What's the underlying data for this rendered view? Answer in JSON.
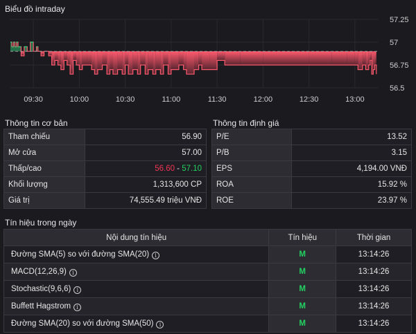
{
  "chart_section_title": "Biểu đồ intraday",
  "chart_data": {
    "type": "area",
    "baseline": 56.9,
    "ylim": [
      56.5,
      57.25
    ],
    "yticks": [
      "57.25",
      "57",
      "56.75",
      "56.5"
    ],
    "xticks": [
      "09:30",
      "10:00",
      "10:30",
      "11:00",
      "11:30",
      "12:00",
      "12:30",
      "13:00"
    ],
    "xrange": [
      "09:15",
      "13:15"
    ],
    "colors": {
      "above": "#2ebd6f",
      "below": "#ff5a6e",
      "below_fade": "#5a2630",
      "baseline": "#9a9a9a"
    },
    "series": [
      {
        "x": [
          "09:15",
          "09:16",
          "09:17",
          "09:18",
          "09:19",
          "09:20",
          "09:21",
          "09:22",
          "09:24",
          "09:26",
          "09:28",
          "09:30",
          "09:32",
          "09:33",
          "09:35",
          "09:37",
          "09:40",
          "09:42",
          "09:44",
          "09:46",
          "09:48",
          "09:50",
          "09:52",
          "09:54",
          "09:56",
          "09:58",
          "10:00",
          "10:02",
          "10:05",
          "10:08",
          "10:10",
          "10:12",
          "10:15",
          "10:18",
          "10:20",
          "10:22",
          "10:25",
          "10:28",
          "10:30",
          "10:32",
          "10:35",
          "10:38",
          "10:40",
          "10:43",
          "10:45",
          "10:48",
          "10:50",
          "10:53",
          "10:55",
          "10:58",
          "11:00",
          "11:03",
          "11:05",
          "11:08",
          "11:10",
          "11:15",
          "11:18",
          "11:20",
          "11:25",
          "11:30",
          "11:35",
          "11:45",
          "12:00",
          "12:15",
          "12:30",
          "12:45",
          "12:55",
          "13:00",
          "13:02",
          "13:05",
          "13:07",
          "13:09",
          "13:10",
          "13:11",
          "13:12",
          "13:13",
          "13:14"
        ],
        "y": [
          57.0,
          56.95,
          57.0,
          56.95,
          57.0,
          56.95,
          56.95,
          56.85,
          56.95,
          56.9,
          57.0,
          56.9,
          56.95,
          56.9,
          56.85,
          56.9,
          56.85,
          56.75,
          56.8,
          56.75,
          56.7,
          56.8,
          56.75,
          56.65,
          56.8,
          56.75,
          56.7,
          56.75,
          56.75,
          56.7,
          56.65,
          56.7,
          56.75,
          56.65,
          56.7,
          56.65,
          56.7,
          56.65,
          56.75,
          56.65,
          56.7,
          56.65,
          56.75,
          56.65,
          56.7,
          56.65,
          56.7,
          56.65,
          56.75,
          56.65,
          56.7,
          56.7,
          56.75,
          56.7,
          56.65,
          56.7,
          56.75,
          56.7,
          56.7,
          56.8,
          56.75,
          56.75,
          56.75,
          56.75,
          56.75,
          56.75,
          56.75,
          56.75,
          56.7,
          56.75,
          56.7,
          56.75,
          56.8,
          56.65,
          56.7,
          56.75,
          56.65
        ]
      }
    ]
  },
  "basic_info": {
    "title": "Thông tin cơ bản",
    "ref_label": "Tham chiếu",
    "ref_value": "56.90",
    "open_label": "Mở cửa",
    "open_value": "57.00",
    "range_label": "Thấp/cao",
    "low_value": "56.60",
    "range_sep": " - ",
    "high_value": "57.10",
    "volume_label": "Khối lượng",
    "volume_value": "1,313,600 CP",
    "value_label": "Giá trị",
    "value_value": "74,555.49 triệu VNĐ"
  },
  "valuation_info": {
    "title": "Thông tin định giá",
    "pe_label": "P/E",
    "pe_value": "13.52",
    "pb_label": "P/B",
    "pb_value": "3.15",
    "eps_label": "EPS",
    "eps_value": "4,194.00 VNĐ",
    "roa_label": "ROA",
    "roa_value": "15.92 %",
    "roe_label": "ROE",
    "roe_value": "23.97 %"
  },
  "signals": {
    "title": "Tín hiệu trong ngày",
    "header_content": "Nội dung tín hiệu",
    "header_signal": "Tín hiệu",
    "header_time": "Thời gian",
    "rows": [
      {
        "name": "Đường SMA(5) so với đường SMA(20)",
        "signal": "M",
        "time": "13:14:26"
      },
      {
        "name": "MACD(12,26,9)",
        "signal": "M",
        "time": "13:14:26"
      },
      {
        "name": "Stochastic(9,6,6)",
        "signal": "M",
        "time": "13:14:26"
      },
      {
        "name": "Buffett Hagstrom",
        "signal": "M",
        "time": "13:14:26"
      },
      {
        "name": "Đường SMA(20) so với đường SMA(50)",
        "signal": "M",
        "time": "13:14:26"
      }
    ],
    "info_icon": "info-circle-icon"
  }
}
